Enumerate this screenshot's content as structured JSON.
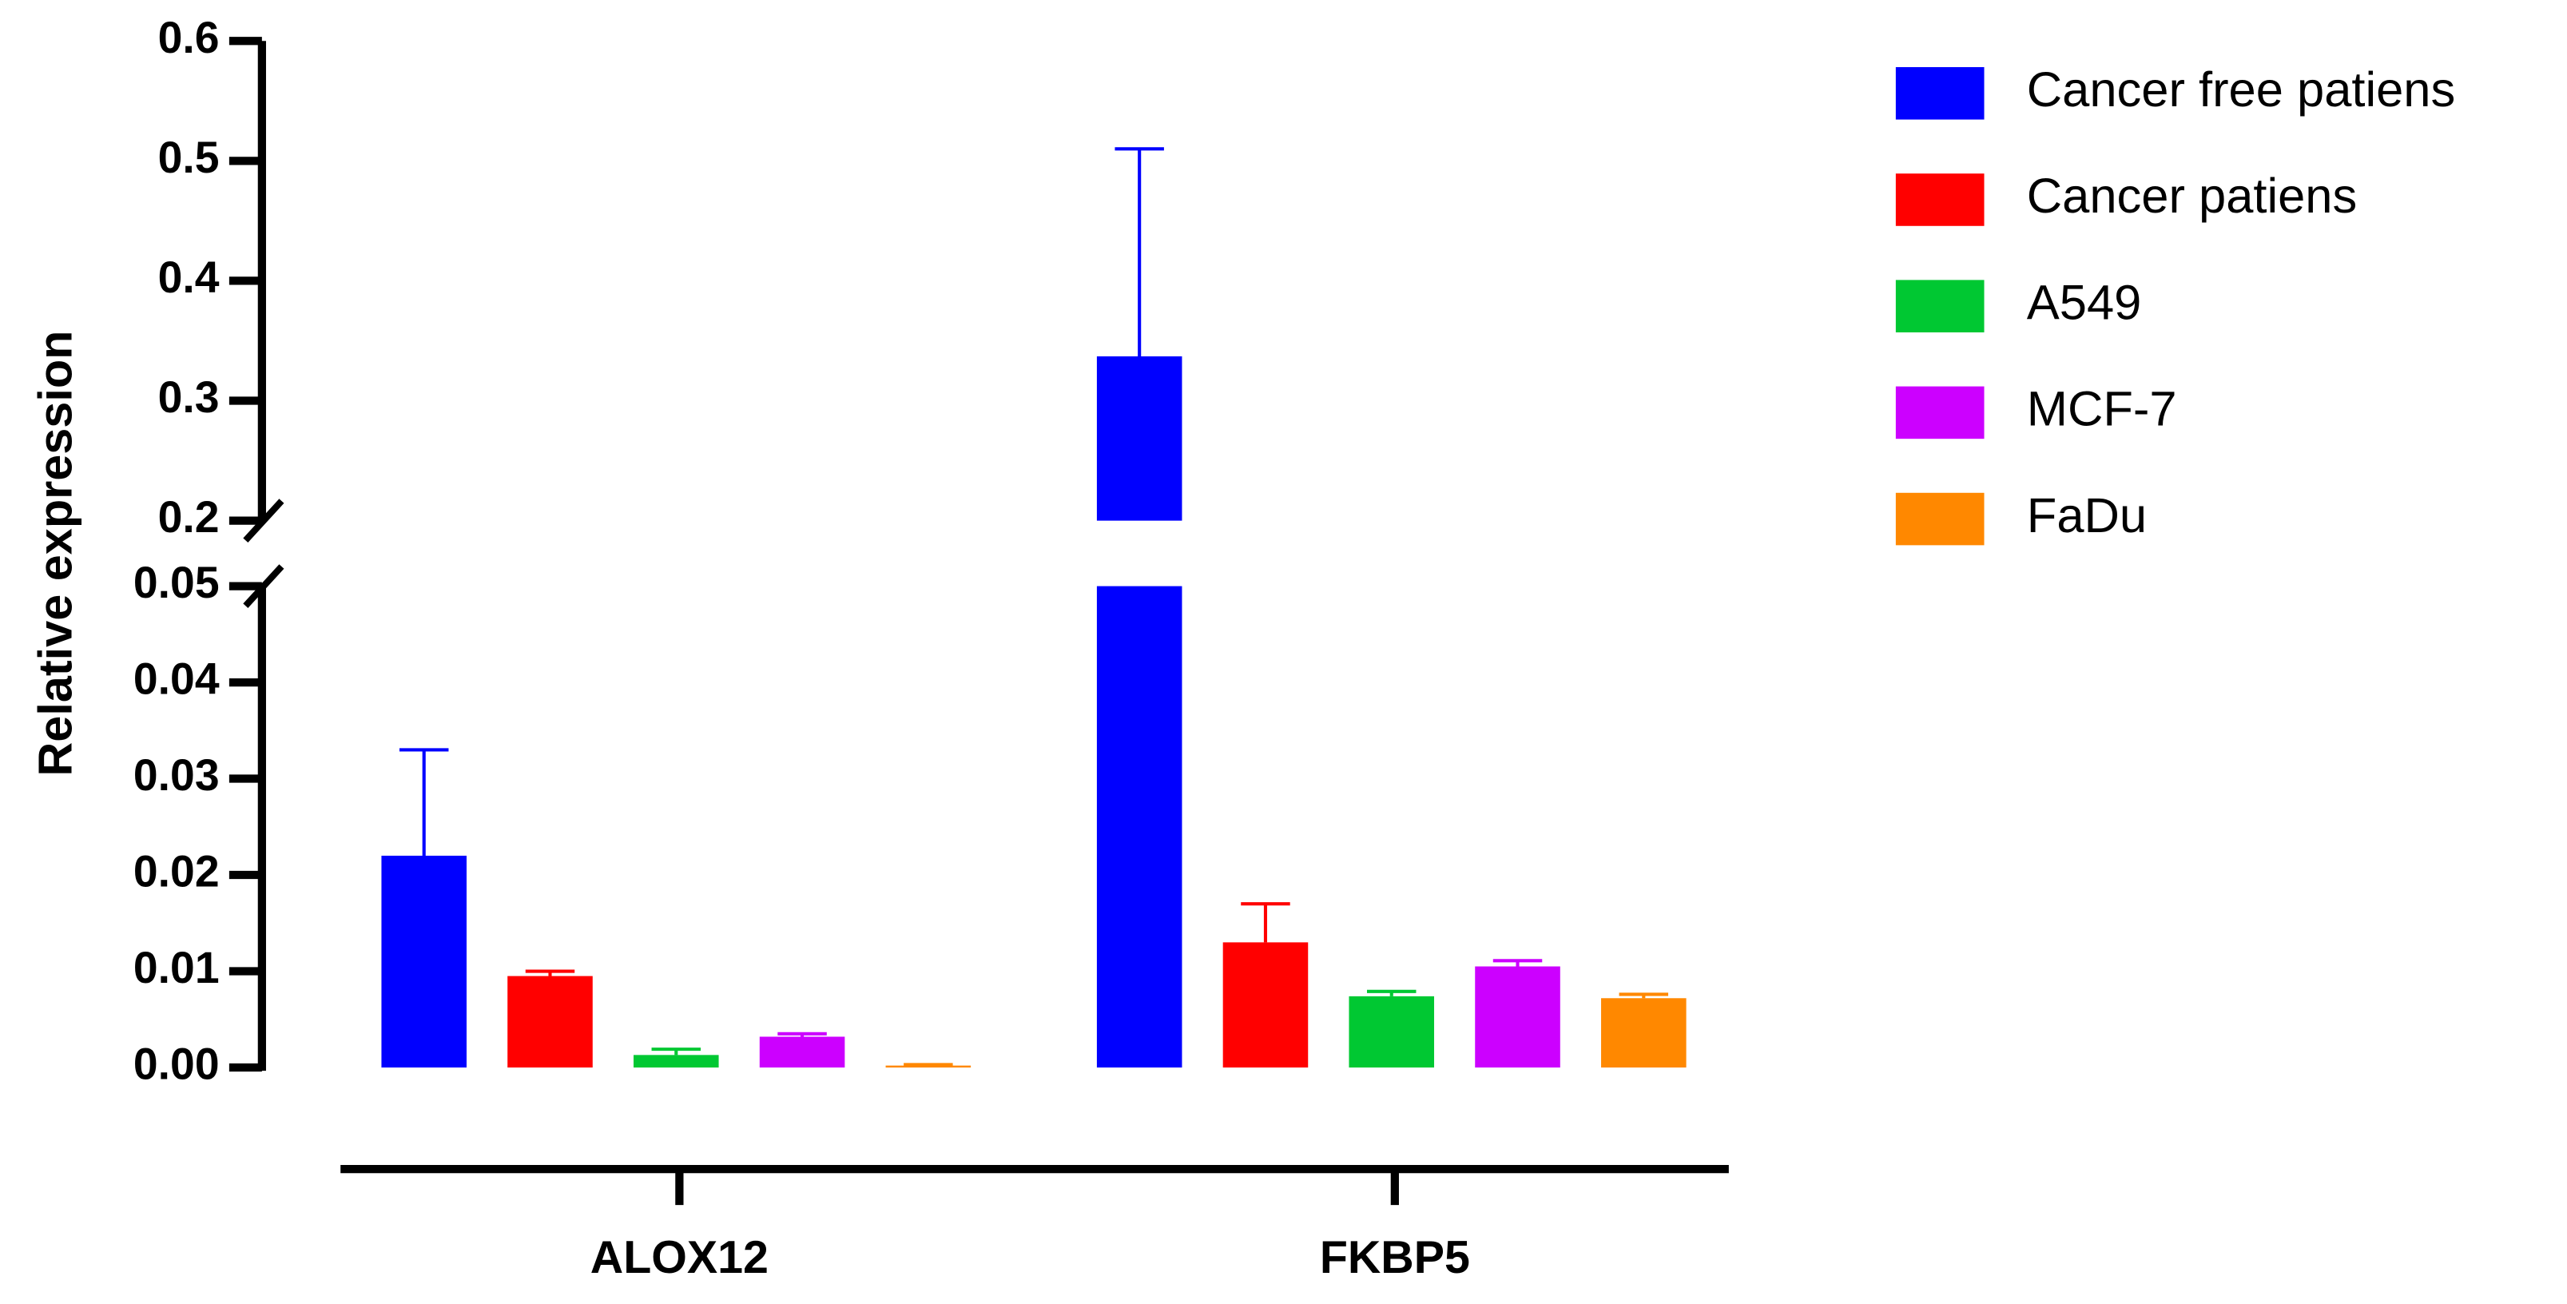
{
  "chart_data": {
    "type": "bar",
    "ylabel": "Relative expression",
    "categories": [
      "ALOX12",
      "FKBP5"
    ],
    "series": [
      {
        "name": "Cancer free patiens",
        "color": "#0000ff",
        "values": [
          0.022,
          0.337
        ],
        "errors": [
          0.011,
          0.173
        ]
      },
      {
        "name": "Cancer patiens",
        "color": "#ff0000",
        "values": [
          0.0095,
          0.013
        ],
        "errors": [
          0.0005,
          0.004
        ]
      },
      {
        "name": "A549",
        "color": "#00c832",
        "values": [
          0.0013,
          0.0074
        ],
        "errors": [
          0.0006,
          0.0005
        ]
      },
      {
        "name": "MCF-7",
        "color": "#cc00ff",
        "values": [
          0.0032,
          0.0105
        ],
        "errors": [
          0.0003,
          0.0006
        ]
      },
      {
        "name": "FaDu",
        "color": "#ff8800",
        "values": [
          0.0002,
          0.0072
        ],
        "errors": [
          0.0001,
          0.0004
        ]
      }
    ],
    "ylim": [
      0,
      0.6
    ],
    "ybreak": [
      0.05,
      0.2
    ],
    "yticks": [
      {
        "value": 0,
        "label": "0.00"
      },
      {
        "value": 0.01,
        "label": "0.01"
      },
      {
        "value": 0.02,
        "label": "0.02"
      },
      {
        "value": 0.03,
        "label": "0.03"
      },
      {
        "value": 0.04,
        "label": "0.04"
      },
      {
        "value": 0.05,
        "label": "0.05"
      },
      0.2,
      0.3,
      0.4,
      0.5,
      0.6
    ],
    "legend": "right"
  }
}
